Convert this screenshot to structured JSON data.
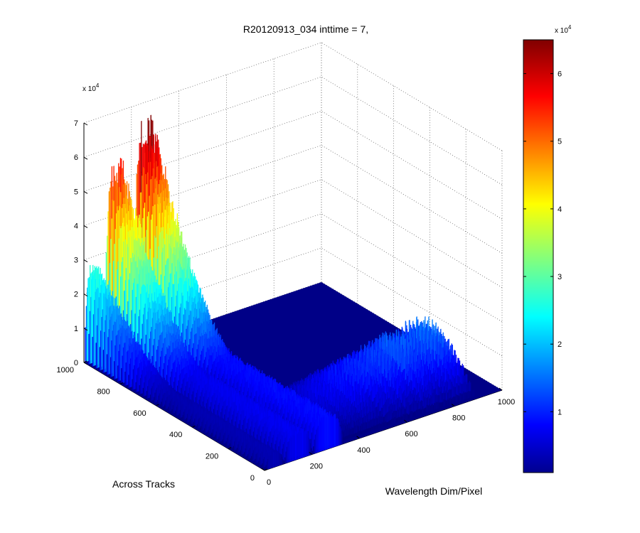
{
  "chart_data": {
    "type": "surface",
    "title": "R20120913_034 inttime = 7,",
    "xlabel": "Wavelength Dim/Pixel",
    "ylabel": "Across Tracks",
    "zlabel": "",
    "x_ticks": [
      "0",
      "200",
      "400",
      "600",
      "800",
      "1000"
    ],
    "y_ticks": [
      "0",
      "200",
      "400",
      "600",
      "800",
      "1000"
    ],
    "z_ticks": [
      "0",
      "1",
      "2",
      "3",
      "4",
      "5",
      "6",
      "7"
    ],
    "z_exponent": "x 10",
    "z_exponent_power": "4",
    "xlim": [
      0,
      1000
    ],
    "ylim": [
      0,
      1000
    ],
    "zlim": [
      0,
      70000
    ],
    "grid": true,
    "colormap": "jet",
    "colorbar": {
      "ticks": [
        "1",
        "2",
        "3",
        "4",
        "5",
        "6"
      ],
      "range": [
        1000,
        65000
      ],
      "exponent": "x 10",
      "exponent_power": "4"
    },
    "surface": {
      "description_units": "wavelength pixel x, across-track y, counts z",
      "ridges": [
        {
          "x_range": [
            0,
            80
          ],
          "y_range": [
            560,
            1000
          ],
          "peak": 30000
        },
        {
          "x_range": [
            80,
            200
          ],
          "y_range": [
            560,
            1000
          ],
          "peak": 57000
        },
        {
          "x_range": [
            200,
            330
          ],
          "y_range": [
            560,
            1000
          ],
          "peak": 67000
        }
      ],
      "low_band": {
        "x_range": [
          150,
          900
        ],
        "y_range": [
          0,
          450
        ],
        "peak": 20000
      }
    }
  }
}
